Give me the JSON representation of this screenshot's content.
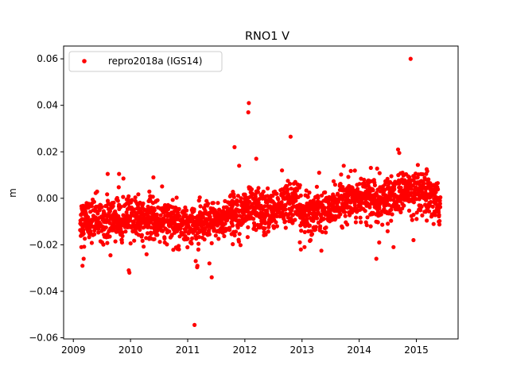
{
  "chart_data": {
    "type": "scatter",
    "title": "RNO1 V",
    "xlabel": "",
    "ylabel": "m",
    "xlim": [
      2008.83,
      2015.73
    ],
    "ylim": [
      -0.0605,
      0.0655
    ],
    "xticks": [
      2009,
      2010,
      2011,
      2012,
      2013,
      2014,
      2015
    ],
    "xtick_labels": [
      "2009",
      "2010",
      "2011",
      "2012",
      "2013",
      "2014",
      "2015"
    ],
    "yticks": [
      -0.06,
      -0.04,
      -0.02,
      0.0,
      0.02,
      0.04,
      0.06
    ],
    "ytick_labels": [
      "−0.06",
      "−0.04",
      "−0.02",
      "0.00",
      "0.02",
      "0.04",
      "0.06"
    ],
    "grid": false,
    "legend": {
      "position": "top-left",
      "entries": [
        "repro2018a (IGS14)"
      ]
    },
    "series": [
      {
        "name": "repro2018a (IGS14)",
        "color": "#ff0000",
        "marker": "circle",
        "x_range": [
          2009.12,
          2015.42
        ],
        "trend_points": [
          [
            2009.12,
            -0.009
          ],
          [
            2009.5,
            -0.009
          ],
          [
            2010.0,
            -0.0085
          ],
          [
            2010.5,
            -0.0095
          ],
          [
            2011.0,
            -0.011
          ],
          [
            2011.3,
            -0.012
          ],
          [
            2011.6,
            -0.009
          ],
          [
            2012.0,
            -0.004
          ],
          [
            2012.3,
            -0.006
          ],
          [
            2012.6,
            -0.004
          ],
          [
            2012.85,
            -0.001
          ],
          [
            2013.0,
            -0.007
          ],
          [
            2013.3,
            -0.006
          ],
          [
            2013.7,
            -0.002
          ],
          [
            2014.0,
            0.001
          ],
          [
            2014.4,
            -0.001
          ],
          [
            2014.8,
            0.003
          ],
          [
            2015.1,
            0.001
          ],
          [
            2015.42,
            -0.003
          ]
        ],
        "scatter_amplitude": 0.0045,
        "outliers": [
          [
            2014.9,
            0.06
          ],
          [
            2012.07,
            0.041
          ],
          [
            2012.06,
            0.037
          ],
          [
            2011.82,
            0.022
          ],
          [
            2012.8,
            0.0265
          ],
          [
            2014.68,
            0.021
          ],
          [
            2012.2,
            0.017
          ],
          [
            2009.18,
            -0.026
          ],
          [
            2009.16,
            -0.029
          ],
          [
            2009.14,
            -0.021
          ],
          [
            2009.98,
            -0.032
          ],
          [
            2009.97,
            -0.031
          ],
          [
            2011.14,
            -0.027
          ],
          [
            2011.17,
            -0.029
          ],
          [
            2011.12,
            -0.0545
          ],
          [
            2011.42,
            -0.034
          ],
          [
            2011.38,
            -0.028
          ],
          [
            2014.3,
            -0.026
          ],
          [
            2014.6,
            -0.021
          ],
          [
            2014.35,
            -0.019
          ],
          [
            2014.95,
            -0.018
          ],
          [
            2012.98,
            -0.022
          ],
          [
            2009.6,
            0.0105
          ],
          [
            2009.8,
            0.0105
          ],
          [
            2010.4,
            0.009
          ],
          [
            2011.9,
            0.014
          ],
          [
            2012.65,
            0.012
          ],
          [
            2013.3,
            0.011
          ],
          [
            2013.73,
            0.014
          ],
          [
            2014.7,
            0.0195
          ],
          [
            2015.18,
            0.0125
          ],
          [
            2009.65,
            -0.0245
          ],
          [
            2012.5,
            -0.012
          ],
          [
            2013.15,
            -0.018
          ],
          [
            2010.6,
            -0.019
          ]
        ]
      }
    ]
  }
}
